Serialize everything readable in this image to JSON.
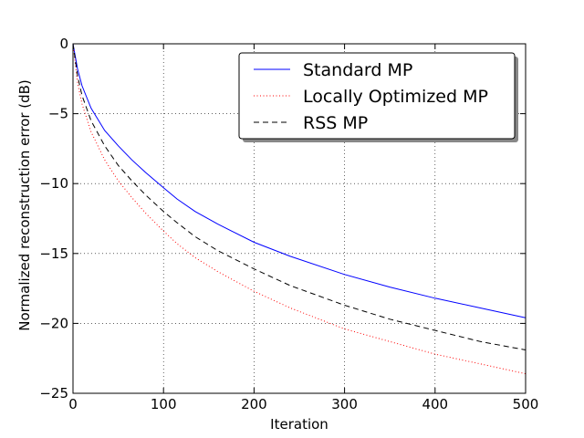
{
  "chart_data": {
    "type": "line",
    "title": "",
    "xlabel": "Iteration",
    "ylabel": "Normalized reconstruction error (dB)",
    "xlim": [
      0,
      500
    ],
    "ylim": [
      -25,
      0
    ],
    "xticks": [
      0,
      100,
      200,
      300,
      400,
      500
    ],
    "yticks": [
      0,
      -5,
      -10,
      -15,
      -20,
      -25
    ],
    "xtick_labels": [
      "0",
      "100",
      "200",
      "300",
      "400",
      "500"
    ],
    "ytick_labels": [
      "0",
      "−5",
      "−10",
      "−15",
      "−20",
      "−25"
    ],
    "grid": true,
    "legend_position": "top-right",
    "series": [
      {
        "name": "Standard MP",
        "color": "#0000ff",
        "style": "solid",
        "x": [
          0,
          5,
          10,
          20,
          35,
          50,
          65,
          80,
          100,
          115,
          135,
          160,
          200,
          240,
          300,
          350,
          400,
          450,
          500
        ],
        "y": [
          0,
          -1.8,
          -3.0,
          -4.6,
          -6.2,
          -7.3,
          -8.3,
          -9.2,
          -10.3,
          -11.1,
          -12.0,
          -12.9,
          -14.2,
          -15.2,
          -16.5,
          -17.4,
          -18.2,
          -18.9,
          -19.6
        ]
      },
      {
        "name": "Locally Optimized MP",
        "color": "#ff0000",
        "style": "dotted",
        "x": [
          0,
          5,
          10,
          20,
          35,
          50,
          65,
          80,
          100,
          115,
          135,
          160,
          200,
          240,
          300,
          350,
          400,
          450,
          500
        ],
        "y": [
          0,
          -2.8,
          -4.3,
          -6.3,
          -8.3,
          -9.8,
          -11.0,
          -12.1,
          -13.4,
          -14.3,
          -15.3,
          -16.3,
          -17.7,
          -18.9,
          -20.4,
          -21.3,
          -22.2,
          -22.9,
          -23.6
        ]
      },
      {
        "name": "RSS MP",
        "color": "#000000",
        "style": "dashed",
        "x": [
          0,
          5,
          10,
          20,
          35,
          50,
          65,
          80,
          100,
          115,
          135,
          160,
          200,
          240,
          300,
          350,
          400,
          450,
          500
        ],
        "y": [
          0,
          -2.3,
          -3.7,
          -5.5,
          -7.3,
          -8.7,
          -9.8,
          -10.8,
          -12.0,
          -12.8,
          -13.8,
          -14.8,
          -16.1,
          -17.3,
          -18.7,
          -19.7,
          -20.5,
          -21.3,
          -21.9
        ]
      }
    ]
  }
}
